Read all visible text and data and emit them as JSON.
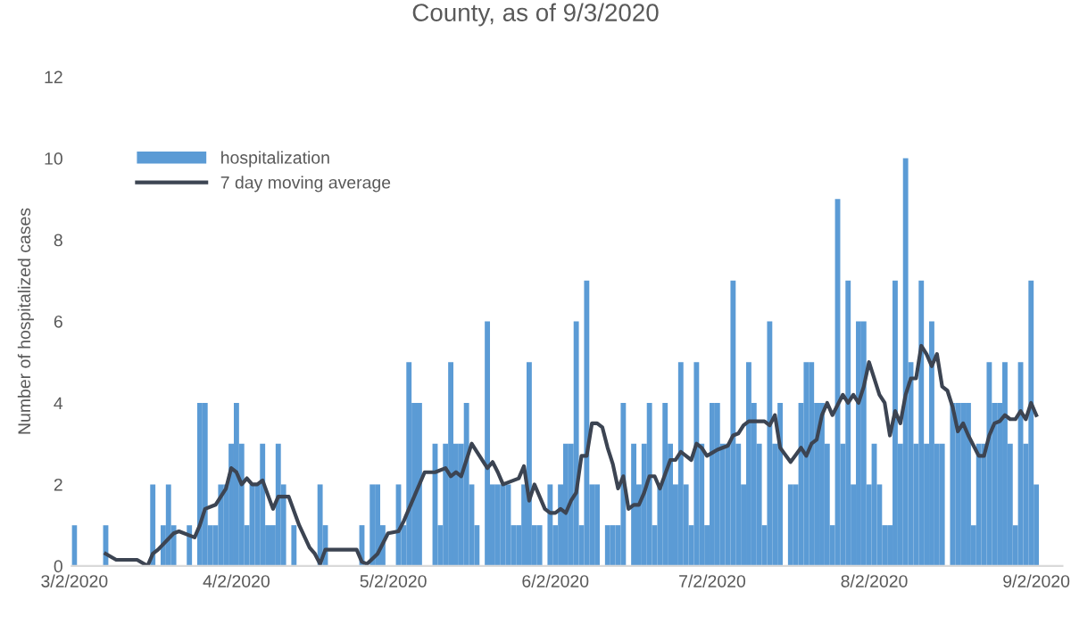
{
  "chart_data": {
    "type": "bar",
    "title": "County, as of 9/3/2020",
    "ylabel": "Number of hospitalized cases",
    "xlim": [
      "2020-03-01T12:00",
      "2020-09-07"
    ],
    "xticks": [
      {
        "value": "2020-03-02",
        "label": "3/2/2020"
      },
      {
        "value": "2020-04-02",
        "label": "4/2/2020"
      },
      {
        "value": "2020-05-02",
        "label": "5/2/2020"
      },
      {
        "value": "2020-06-02",
        "label": "6/2/2020"
      },
      {
        "value": "2020-07-02",
        "label": "7/2/2020"
      },
      {
        "value": "2020-08-02",
        "label": "8/2/2020"
      },
      {
        "value": "2020-09-02",
        "label": "9/2/2020"
      }
    ],
    "ylim": [
      0,
      12
    ],
    "yticks": [
      0,
      2,
      4,
      6,
      8,
      10,
      12
    ],
    "grid": false,
    "legend": "top left",
    "series": [
      {
        "name": "hospitalization",
        "color": "#5b9bd5",
        "x": [
          "2020-03-02",
          "2020-03-03",
          "2020-03-04",
          "2020-03-05",
          "2020-03-06",
          "2020-03-07",
          "2020-03-08",
          "2020-03-09",
          "2020-03-10",
          "2020-03-11",
          "2020-03-12",
          "2020-03-13",
          "2020-03-14",
          "2020-03-15",
          "2020-03-16",
          "2020-03-17",
          "2020-03-18",
          "2020-03-19",
          "2020-03-20",
          "2020-03-21",
          "2020-03-22",
          "2020-03-23",
          "2020-03-24",
          "2020-03-25",
          "2020-03-26",
          "2020-03-27",
          "2020-03-28",
          "2020-03-29",
          "2020-03-30",
          "2020-03-31",
          "2020-04-01",
          "2020-04-02",
          "2020-04-03",
          "2020-04-04",
          "2020-04-05",
          "2020-04-06",
          "2020-04-07",
          "2020-04-08",
          "2020-04-09",
          "2020-04-10",
          "2020-04-11",
          "2020-04-12",
          "2020-04-13",
          "2020-04-14",
          "2020-04-15",
          "2020-04-16",
          "2020-04-17",
          "2020-04-18",
          "2020-04-19",
          "2020-04-20",
          "2020-04-21",
          "2020-04-22",
          "2020-04-23",
          "2020-04-24",
          "2020-04-25",
          "2020-04-26",
          "2020-04-27",
          "2020-04-28",
          "2020-04-29",
          "2020-04-30",
          "2020-05-01",
          "2020-05-02",
          "2020-05-03",
          "2020-05-04",
          "2020-05-05",
          "2020-05-06",
          "2020-05-07",
          "2020-05-08",
          "2020-05-09",
          "2020-05-10",
          "2020-05-11",
          "2020-05-12",
          "2020-05-13",
          "2020-05-14",
          "2020-05-15",
          "2020-05-16",
          "2020-05-17",
          "2020-05-18",
          "2020-05-19",
          "2020-05-20",
          "2020-05-21",
          "2020-05-22",
          "2020-05-23",
          "2020-05-24",
          "2020-05-25",
          "2020-05-26",
          "2020-05-27",
          "2020-05-28",
          "2020-05-29",
          "2020-05-30",
          "2020-05-31",
          "2020-06-01",
          "2020-06-02",
          "2020-06-03",
          "2020-06-04",
          "2020-06-05",
          "2020-06-06",
          "2020-06-07",
          "2020-06-08",
          "2020-06-09",
          "2020-06-10",
          "2020-06-11",
          "2020-06-12",
          "2020-06-13",
          "2020-06-14",
          "2020-06-15",
          "2020-06-16",
          "2020-06-17",
          "2020-06-18",
          "2020-06-19",
          "2020-06-20",
          "2020-06-21",
          "2020-06-22",
          "2020-06-23",
          "2020-06-24",
          "2020-06-25",
          "2020-06-26",
          "2020-06-27",
          "2020-06-28",
          "2020-06-29",
          "2020-06-30",
          "2020-07-01",
          "2020-07-02",
          "2020-07-03",
          "2020-07-04",
          "2020-07-05",
          "2020-07-06",
          "2020-07-07",
          "2020-07-08",
          "2020-07-09",
          "2020-07-10",
          "2020-07-11",
          "2020-07-12",
          "2020-07-13",
          "2020-07-14",
          "2020-07-15",
          "2020-07-16",
          "2020-07-17",
          "2020-07-18",
          "2020-07-19",
          "2020-07-20",
          "2020-07-21",
          "2020-07-22",
          "2020-07-23",
          "2020-07-24",
          "2020-07-25",
          "2020-07-26",
          "2020-07-27",
          "2020-07-28",
          "2020-07-29",
          "2020-07-30",
          "2020-07-31",
          "2020-08-01",
          "2020-08-02",
          "2020-08-03",
          "2020-08-04",
          "2020-08-05",
          "2020-08-06",
          "2020-08-07",
          "2020-08-08",
          "2020-08-09",
          "2020-08-10",
          "2020-08-11",
          "2020-08-12",
          "2020-08-13",
          "2020-08-14",
          "2020-08-15",
          "2020-08-16",
          "2020-08-17",
          "2020-08-18",
          "2020-08-19",
          "2020-08-20",
          "2020-08-21",
          "2020-08-22",
          "2020-08-23",
          "2020-08-24",
          "2020-08-25",
          "2020-08-26",
          "2020-08-27",
          "2020-08-28",
          "2020-08-29",
          "2020-08-30",
          "2020-08-31",
          "2020-09-01",
          "2020-09-02"
        ],
        "values": [
          1,
          0,
          0,
          0,
          0,
          0,
          1,
          0,
          0,
          0,
          0,
          0,
          0,
          0,
          0,
          2,
          0,
          1,
          2,
          1,
          0,
          0,
          1,
          0,
          4,
          4,
          1,
          1,
          2,
          2,
          3,
          4,
          3,
          1,
          2,
          2,
          3,
          1,
          1,
          3,
          2,
          0,
          1,
          0,
          0,
          0,
          0,
          2,
          1,
          0,
          0,
          0,
          0,
          0,
          0,
          1,
          0,
          2,
          2,
          1,
          0,
          0,
          2,
          1,
          5,
          4,
          4,
          0,
          0,
          3,
          1,
          3,
          5,
          3,
          3,
          4,
          2,
          1,
          0,
          6,
          2,
          2,
          2,
          2,
          1,
          1,
          2,
          5,
          1,
          1,
          0,
          2,
          1,
          2,
          3,
          3,
          6,
          1,
          7,
          2,
          2,
          0,
          1,
          1,
          1,
          4,
          0,
          3,
          2,
          3,
          4,
          1,
          2,
          4,
          3,
          2,
          5,
          2,
          1,
          5,
          3,
          1,
          4,
          4,
          3,
          3,
          7,
          3,
          2,
          5,
          4,
          3,
          1,
          6,
          3,
          4,
          0,
          2,
          2,
          4,
          5,
          5,
          4,
          4,
          3,
          1,
          9,
          3,
          7,
          2,
          6,
          6,
          2,
          3,
          2,
          1,
          1,
          7,
          3,
          10,
          5,
          3,
          7,
          3,
          6,
          3,
          3,
          0,
          4,
          4,
          4,
          4,
          1,
          3,
          3,
          5,
          4,
          4,
          5,
          3,
          1,
          5,
          3,
          7,
          2
        ]
      },
      {
        "name": "7 day moving average",
        "type": "line",
        "color": "#3c4452",
        "x": [
          "2020-03-08",
          "2020-03-10",
          "2020-03-14",
          "2020-03-16",
          "2020-03-17",
          "2020-03-18",
          "2020-03-21",
          "2020-03-22",
          "2020-03-25",
          "2020-03-26",
          "2020-03-27",
          "2020-03-29",
          "2020-03-31",
          "2020-04-01",
          "2020-04-02",
          "2020-04-03",
          "2020-04-04",
          "2020-04-05",
          "2020-04-06",
          "2020-04-07",
          "2020-04-09",
          "2020-04-10",
          "2020-04-12",
          "2020-04-14",
          "2020-04-16",
          "2020-04-17",
          "2020-04-18",
          "2020-04-19",
          "2020-04-25",
          "2020-04-26",
          "2020-04-27",
          "2020-04-29",
          "2020-05-01",
          "2020-05-03",
          "2020-05-04",
          "2020-05-06",
          "2020-05-08",
          "2020-05-10",
          "2020-05-12",
          "2020-05-13",
          "2020-05-14",
          "2020-05-15",
          "2020-05-17",
          "2020-05-18",
          "2020-05-20",
          "2020-05-21",
          "2020-05-22",
          "2020-05-23",
          "2020-05-25",
          "2020-05-26",
          "2020-05-27",
          "2020-05-28",
          "2020-05-29",
          "2020-05-30",
          "2020-05-31",
          "2020-06-01",
          "2020-06-02",
          "2020-06-03",
          "2020-06-04",
          "2020-06-05",
          "2020-06-06",
          "2020-06-07",
          "2020-06-08",
          "2020-06-09",
          "2020-06-10",
          "2020-06-11",
          "2020-06-12",
          "2020-06-13",
          "2020-06-14",
          "2020-06-15",
          "2020-06-16",
          "2020-06-17",
          "2020-06-18",
          "2020-06-19",
          "2020-06-20",
          "2020-06-21",
          "2020-06-22",
          "2020-06-24",
          "2020-06-25",
          "2020-06-26",
          "2020-06-28",
          "2020-06-29",
          "2020-06-30",
          "2020-07-01",
          "2020-07-03",
          "2020-07-04",
          "2020-07-05",
          "2020-07-06",
          "2020-07-07",
          "2020-07-08",
          "2020-07-09",
          "2020-07-11",
          "2020-07-12",
          "2020-07-13",
          "2020-07-14",
          "2020-07-15",
          "2020-07-17",
          "2020-07-19",
          "2020-07-20",
          "2020-07-21",
          "2020-07-22",
          "2020-07-23",
          "2020-07-24",
          "2020-07-25",
          "2020-07-27",
          "2020-07-28",
          "2020-07-29",
          "2020-07-30",
          "2020-07-31",
          "2020-08-01",
          "2020-08-03",
          "2020-08-04",
          "2020-08-05",
          "2020-08-06",
          "2020-08-07",
          "2020-08-08",
          "2020-08-09",
          "2020-08-10",
          "2020-08-11",
          "2020-08-12",
          "2020-08-13",
          "2020-08-14",
          "2020-08-15",
          "2020-08-16",
          "2020-08-17",
          "2020-08-18",
          "2020-08-19",
          "2020-08-20",
          "2020-08-22",
          "2020-08-23",
          "2020-08-24",
          "2020-08-25",
          "2020-08-26",
          "2020-08-27",
          "2020-08-28",
          "2020-08-29",
          "2020-08-30",
          "2020-08-31",
          "2020-09-01",
          "2020-09-02"
        ],
        "values": [
          0.3,
          0.15,
          0.15,
          0,
          0.3,
          0.4,
          0.8,
          0.85,
          0.7,
          1.0,
          1.4,
          1.5,
          1.9,
          2.4,
          2.3,
          2.0,
          2.15,
          2.0,
          2.0,
          2.1,
          1.4,
          1.7,
          1.7,
          1.0,
          0.45,
          0.3,
          0.05,
          0.4,
          0.4,
          0.1,
          0.05,
          0.3,
          0.8,
          0.85,
          1.1,
          1.7,
          2.3,
          2.3,
          2.4,
          2.2,
          2.3,
          2.2,
          3.0,
          2.8,
          2.4,
          2.55,
          2.3,
          2.0,
          2.1,
          2.15,
          2.45,
          1.6,
          2.0,
          1.7,
          1.4,
          1.3,
          1.3,
          1.4,
          1.3,
          1.6,
          1.8,
          2.7,
          2.7,
          3.5,
          3.5,
          3.4,
          2.9,
          2.5,
          1.9,
          2.2,
          1.4,
          1.5,
          1.5,
          1.8,
          2.2,
          2.2,
          1.9,
          2.6,
          2.6,
          2.8,
          2.6,
          3.0,
          2.9,
          2.7,
          2.85,
          2.9,
          2.95,
          3.2,
          3.25,
          3.45,
          3.55,
          3.55,
          3.55,
          3.45,
          3.7,
          2.9,
          2.55,
          2.9,
          2.7,
          3.0,
          3.1,
          3.7,
          4.0,
          3.7,
          4.2,
          4.0,
          4.2,
          4.0,
          4.4,
          5.0,
          4.2,
          4.0,
          3.2,
          3.8,
          3.5,
          4.2,
          4.6,
          4.6,
          5.4,
          5.2,
          4.9,
          5.2,
          4.4,
          4.3,
          3.9,
          3.3,
          3.5,
          3.2,
          2.7,
          2.7,
          3.2,
          3.5,
          3.55,
          3.7,
          3.6,
          3.6,
          3.8,
          3.6,
          4.0,
          3.7
        ]
      }
    ]
  }
}
